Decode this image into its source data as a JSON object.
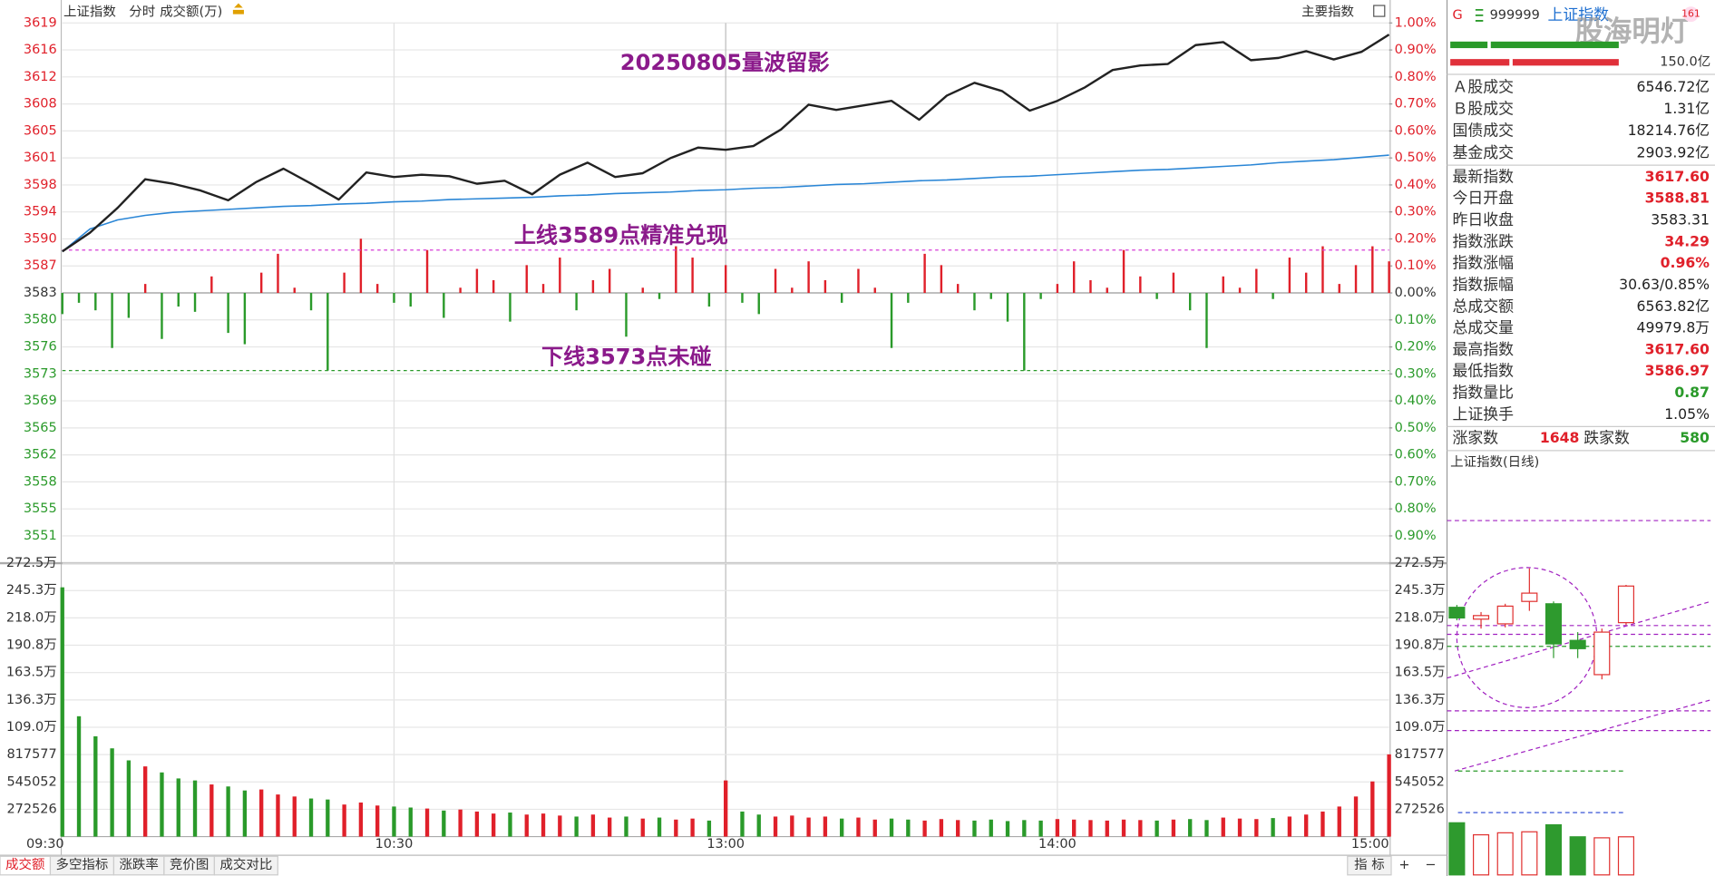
{
  "header": {
    "title": "上证指数",
    "tabs": [
      "分时",
      "成交额(万)"
    ],
    "right": "主要指数"
  },
  "chart_data": [
    {
      "type": "line",
      "x": [
        0,
        5,
        10,
        15,
        20,
        25,
        30,
        35,
        40,
        45,
        50,
        55,
        60,
        65,
        70,
        75,
        80,
        85,
        90,
        95,
        100,
        105,
        110,
        115,
        120,
        125,
        130,
        135,
        140,
        145,
        150,
        155,
        160,
        165,
        170,
        175,
        180,
        185,
        190,
        195,
        200,
        205,
        210,
        215,
        220,
        225,
        230,
        235,
        240
      ],
      "series": [
        {
          "color": "#222222",
          "values": [
            3588.81,
            3591.3,
            3594.6,
            3598.4,
            3597.8,
            3596.9,
            3595.6,
            3598.0,
            3599.8,
            3597.8,
            3595.7,
            3599.3,
            3598.7,
            3599.0,
            3598.8,
            3597.8,
            3598.2,
            3596.4,
            3599.0,
            3600.6,
            3598.7,
            3599.2,
            3601.2,
            3602.6,
            3602.3,
            3602.8,
            3605.0,
            3608.3,
            3607.6,
            3608.2,
            3608.8,
            3606.3,
            3609.5,
            3611.2,
            3610.1,
            3607.5,
            3608.8,
            3610.6,
            3612.9,
            3613.5,
            3613.7,
            3616.2,
            3616.6,
            3614.2,
            3614.5,
            3615.4,
            3614.3,
            3615.3,
            3617.6
          ]
        },
        {
          "color": "#2a86d6",
          "values": [
            3588.8,
            3591.8,
            3593.0,
            3593.6,
            3594.0,
            3594.2,
            3594.4,
            3594.6,
            3594.8,
            3594.9,
            3595.1,
            3595.2,
            3595.4,
            3595.5,
            3595.7,
            3595.8,
            3595.9,
            3596.0,
            3596.2,
            3596.3,
            3596.5,
            3596.6,
            3596.7,
            3596.9,
            3597.0,
            3597.2,
            3597.3,
            3597.5,
            3597.7,
            3597.8,
            3598.0,
            3598.2,
            3598.3,
            3598.5,
            3598.7,
            3598.8,
            3599.0,
            3599.2,
            3599.4,
            3599.6,
            3599.7,
            3599.9,
            3600.1,
            3600.3,
            3600.6,
            3600.8,
            3601.0,
            3601.3,
            3601.6
          ]
        }
      ],
      "bars": {
        "x": [
          0,
          3,
          6,
          9,
          12,
          15,
          18,
          21,
          24,
          27,
          30,
          33,
          36,
          39,
          42,
          45,
          48,
          51,
          54,
          57,
          60,
          63,
          66,
          69,
          72,
          75,
          78,
          81,
          84,
          87,
          90,
          93,
          96,
          99,
          102,
          105,
          108,
          111,
          114,
          117,
          120,
          123,
          126,
          129,
          132,
          135,
          138,
          141,
          144,
          147,
          150,
          153,
          156,
          159,
          162,
          165,
          168,
          171,
          174,
          177,
          180,
          183,
          186,
          189,
          192,
          195,
          198,
          201,
          204,
          207,
          210,
          213,
          216,
          219,
          222,
          225,
          228,
          231,
          234,
          237,
          240
        ],
        "values": [
          3580.5,
          3582.0,
          3581.0,
          3576.0,
          3580.0,
          3584.5,
          3577.2,
          3581.5,
          3580.8,
          3585.5,
          3578.0,
          3576.5,
          3586.0,
          3588.5,
          3584.0,
          3581.0,
          3573.0,
          3586.0,
          3590.5,
          3584.5,
          3582.0,
          3581.5,
          3589.0,
          3580.0,
          3584.0,
          3586.5,
          3585.0,
          3579.5,
          3587.0,
          3584.5,
          3588.0,
          3581.0,
          3585.0,
          3586.5,
          3577.5,
          3584.0,
          3582.5,
          3589.5,
          3588.0,
          3581.5,
          3587.0,
          3582.0,
          3580.5,
          3586.5,
          3584.0,
          3587.5,
          3585.0,
          3582.0,
          3586.5,
          3584.0,
          3576.0,
          3582.0,
          3588.5,
          3587.0,
          3584.5,
          3581.0,
          3582.5,
          3579.5,
          3573.0,
          3582.5,
          3584.5,
          3587.5,
          3585.0,
          3584.0,
          3589.0,
          3585.5,
          3582.5,
          3586.0,
          3581.0,
          3576.0,
          3585.5,
          3584.0,
          3586.5,
          3582.5,
          3588.0,
          3586.0,
          3589.5,
          3584.5,
          3587.0,
          3589.5,
          3587.5
        ]
      },
      "up_color": "#e0202a",
      "down_color": "#2a9a2a",
      "hlines": [
        {
          "value": 3589,
          "color": "#d63bd6"
        },
        {
          "value": 3573,
          "color": "#2a9a2a"
        }
      ],
      "annotations": [
        "20250805量波留影",
        "上线3589点精准兑现",
        "下线3573点未碰"
      ],
      "annotation_color": "#8b1a8b",
      "xlim": [
        0,
        240
      ],
      "xticks": [
        {
          "value": 0,
          "label": "09:30"
        },
        {
          "value": 60,
          "label": "10:30"
        },
        {
          "value": 120,
          "label": "13:00"
        },
        {
          "value": 180,
          "label": "14:00"
        },
        {
          "value": 240,
          "label": "15:00"
        }
      ],
      "ylim": [
        3551.06,
        3619.14
      ],
      "yticks": [
        {
          "value": 3619.14,
          "label": "3619"
        },
        {
          "value": 3615.56,
          "label": "3616"
        },
        {
          "value": 3611.98,
          "label": "3612"
        },
        {
          "value": 3608.39,
          "label": "3608"
        },
        {
          "value": 3604.81,
          "label": "3605"
        },
        {
          "value": 3601.23,
          "label": "3601"
        },
        {
          "value": 3597.64,
          "label": "3598"
        },
        {
          "value": 3594.06,
          "label": "3594"
        },
        {
          "value": 3590.48,
          "label": "3590"
        },
        {
          "value": 3586.89,
          "label": "3587"
        },
        {
          "value": 3583.31,
          "label": "3583"
        },
        {
          "value": 3579.73,
          "label": "3580"
        },
        {
          "value": 3576.14,
          "label": "3576"
        },
        {
          "value": 3572.56,
          "label": "3573"
        },
        {
          "value": 3568.98,
          "label": "3569"
        },
        {
          "value": 3565.39,
          "label": "3565"
        },
        {
          "value": 3561.81,
          "label": "3562"
        },
        {
          "value": 3558.23,
          "label": "3558"
        },
        {
          "value": 3554.64,
          "label": "3555"
        },
        {
          "value": 3551.06,
          "label": "3551"
        }
      ],
      "y2lim": [
        -0.9,
        1.0
      ],
      "y2ticks": [
        {
          "value": 1.0,
          "label": "1.00%"
        },
        {
          "value": 0.9,
          "label": "0.90%"
        },
        {
          "value": 0.8,
          "label": "0.80%"
        },
        {
          "value": 0.7,
          "label": "0.70%"
        },
        {
          "value": 0.6,
          "label": "0.60%"
        },
        {
          "value": 0.5,
          "label": "0.50%"
        },
        {
          "value": 0.4,
          "label": "0.40%"
        },
        {
          "value": 0.3,
          "label": "0.30%"
        },
        {
          "value": 0.2,
          "label": "0.20%"
        },
        {
          "value": 0.1,
          "label": "0.10%"
        },
        {
          "value": 0,
          "label": "0.00%"
        },
        {
          "value": -0.1,
          "label": "0.10%"
        },
        {
          "value": -0.2,
          "label": "0.20%"
        },
        {
          "value": -0.3,
          "label": "0.30%"
        },
        {
          "value": -0.4,
          "label": "0.40%"
        },
        {
          "value": -0.5,
          "label": "0.50%"
        },
        {
          "value": -0.6,
          "label": "0.60%"
        },
        {
          "value": -0.7,
          "label": "0.70%"
        },
        {
          "value": -0.8,
          "label": "0.80%"
        },
        {
          "value": -0.9,
          "label": "0.90%"
        }
      ]
    },
    {
      "type": "bar",
      "x": [
        0,
        3,
        6,
        9,
        12,
        15,
        18,
        21,
        24,
        27,
        30,
        33,
        36,
        39,
        42,
        45,
        48,
        51,
        54,
        57,
        60,
        63,
        66,
        69,
        72,
        75,
        78,
        81,
        84,
        87,
        90,
        93,
        96,
        99,
        102,
        105,
        108,
        111,
        114,
        117,
        120,
        123,
        126,
        129,
        132,
        135,
        138,
        141,
        144,
        147,
        150,
        153,
        156,
        159,
        162,
        165,
        168,
        171,
        174,
        177,
        180,
        183,
        186,
        189,
        192,
        195,
        198,
        201,
        204,
        207,
        210,
        213,
        216,
        219,
        222,
        225,
        228,
        231,
        234,
        237,
        240
      ],
      "values": [
        2485000,
        1200000,
        1000000,
        880000,
        760000,
        700000,
        640000,
        580000,
        560000,
        520000,
        500000,
        460000,
        470000,
        420000,
        400000,
        380000,
        370000,
        320000,
        340000,
        310000,
        300000,
        290000,
        280000,
        260000,
        270000,
        250000,
        230000,
        240000,
        220000,
        230000,
        210000,
        200000,
        220000,
        190000,
        200000,
        180000,
        190000,
        170000,
        180000,
        160000,
        560000,
        250000,
        220000,
        200000,
        210000,
        190000,
        200000,
        180000,
        190000,
        170000,
        180000,
        170000,
        160000,
        175000,
        165000,
        160000,
        170000,
        155000,
        165000,
        160000,
        175000,
        170000,
        165000,
        160000,
        170000,
        165000,
        160000,
        170000,
        175000,
        165000,
        190000,
        180000,
        175000,
        185000,
        200000,
        220000,
        250000,
        300000,
        400000,
        550000,
        820000
      ],
      "xlim": [
        0,
        240
      ],
      "ylim": [
        0,
        2725257
      ],
      "yticks": [
        {
          "value": 2725257,
          "label": "272.5万"
        },
        {
          "value": 2452731,
          "label": "245.3万"
        },
        {
          "value": 2180206,
          "label": "218.0万"
        },
        {
          "value": 1907680,
          "label": "190.8万"
        },
        {
          "value": 1635154,
          "label": "163.5万"
        },
        {
          "value": 1362629,
          "label": "136.3万"
        },
        {
          "value": 1090103,
          "label": "109.0万"
        },
        817577,
        545052,
        272526
      ]
    },
    {
      "type": "candlestick",
      "title": "上证指数(日线)",
      "categories": [
        null,
        null,
        null,
        null,
        null,
        null,
        null,
        null
      ],
      "open": [
        3621,
        3611,
        3607,
        3626,
        3624,
        3593,
        3564,
        3608
      ],
      "high": [
        3623,
        3617,
        3624,
        3654,
        3626,
        3600,
        3603,
        3640
      ],
      "low": [
        3610,
        3603,
        3604,
        3618,
        3578,
        3578,
        3560,
        3606
      ],
      "close": [
        3612,
        3614,
        3622,
        3633,
        3590,
        3586,
        3600,
        3639
      ],
      "volume": [
        52,
        40,
        42,
        43,
        50,
        38,
        37,
        38
      ],
      "ylim": [
        3450,
        3700
      ],
      "volume_ylim": [
        0,
        60
      ],
      "up_color": "#e0302f",
      "down_color": "#2e9a2e"
    }
  ],
  "quote_panel": {
    "code_prefix": "G",
    "code": "999999",
    "name": "上证指数",
    "badge": "161",
    "watermark": "股海明灯",
    "scale_label": "150.0亿",
    "rows": [
      {
        "label": "Ａ股成交",
        "value": "6546.72亿"
      },
      {
        "label": "Ｂ股成交",
        "value": "1.31亿"
      },
      {
        "label": "国债成交",
        "value": "18214.76亿"
      },
      {
        "label": "基金成交",
        "value": "2903.92亿"
      },
      {
        "label": "最新指数",
        "value": "3617.60",
        "color": "#e0202a"
      },
      {
        "label": "今日开盘",
        "value": "3588.81",
        "color": "#e0202a"
      },
      {
        "label": "昨日收盘",
        "value": "3583.31"
      },
      {
        "label": "指数涨跌",
        "value": "34.29",
        "color": "#e0202a"
      },
      {
        "label": "指数涨幅",
        "value": "0.96%",
        "color": "#e0202a"
      },
      {
        "label": "指数振幅",
        "value": "30.63/0.85%"
      },
      {
        "label": "总成交额",
        "value": "6563.82亿"
      },
      {
        "label": "总成交量",
        "value": "49979.8万"
      },
      {
        "label": "最高指数",
        "value": "3617.60",
        "color": "#e0202a"
      },
      {
        "label": "最低指数",
        "value": "3586.97",
        "color": "#e0202a"
      },
      {
        "label": "指数量比",
        "value": "0.87",
        "color": "#2a9a2a"
      },
      {
        "label": "上证换手",
        "value": "1.05%"
      }
    ],
    "advance_label": "涨家数",
    "advance": "1648",
    "decline_label": "跌家数",
    "decline": "580"
  },
  "footer": {
    "tabs": [
      "成交额",
      "多空指标",
      "涨跌率",
      "竞价图",
      "成交对比"
    ],
    "indicator": "指 标",
    "buttons": [
      "+",
      "−"
    ]
  }
}
